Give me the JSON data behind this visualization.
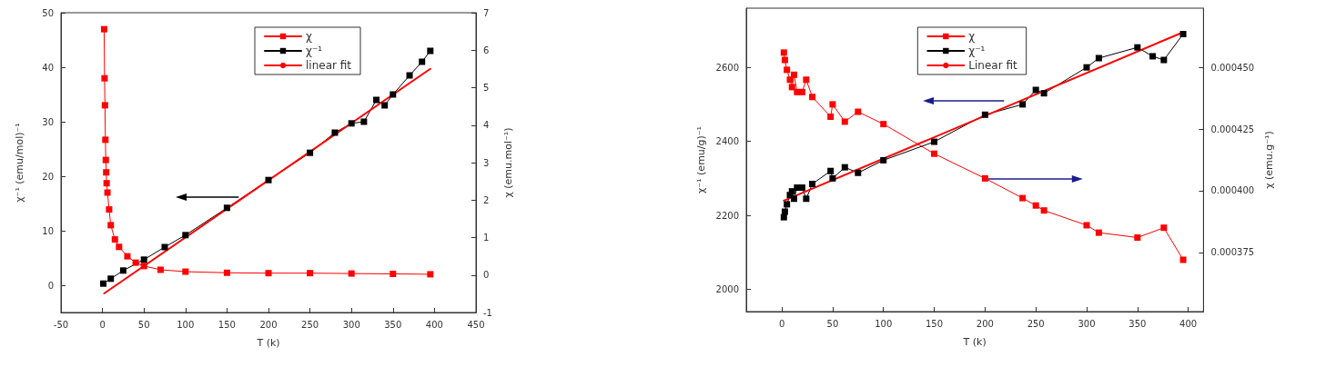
{
  "chart_data": [
    {
      "type": "line",
      "xlabel": "T (k)",
      "ylabel": "χ⁻¹ (emu/mol)⁻¹",
      "y2label": "χ (emu.mol⁻¹)",
      "xlim": [
        -50,
        450
      ],
      "xticks": [
        -50,
        0,
        50,
        100,
        150,
        200,
        250,
        300,
        350,
        400,
        450
      ],
      "ylim": [
        -5,
        50
      ],
      "yticks": [
        0,
        10,
        20,
        30,
        40,
        50
      ],
      "y2lim": [
        -1,
        7
      ],
      "y2ticks": [
        -1,
        0,
        1,
        2,
        3,
        4,
        5,
        6,
        7
      ],
      "grid": false,
      "legend": "top",
      "marker": "square",
      "line_style": "solid",
      "series": [
        {
          "name": "χ",
          "color": "#ff0000",
          "axis": "y2",
          "x": [
            2,
            2.5,
            3,
            3.5,
            4,
            4.5,
            5,
            6,
            8,
            10,
            15,
            20,
            30,
            40,
            50,
            70,
            100,
            150,
            200,
            250,
            300,
            350,
            395
          ],
          "values": [
            6.56,
            5.25,
            4.53,
            3.61,
            3.07,
            2.74,
            2.45,
            2.2,
            1.75,
            1.33,
            0.95,
            0.75,
            0.5,
            0.33,
            0.24,
            0.14,
            0.09,
            0.06,
            0.05,
            0.05,
            0.04,
            0.03,
            0.02
          ]
        },
        {
          "name": "χ⁻¹",
          "color": "#000000",
          "x": [
            1,
            10,
            25,
            50,
            75,
            100,
            150,
            200,
            250,
            280,
            300,
            315,
            330,
            340,
            350,
            370,
            385,
            395
          ],
          "values": [
            0.3,
            1.2,
            2.7,
            4.7,
            7,
            9.2,
            14.2,
            19.3,
            24.3,
            28,
            29.7,
            30,
            34,
            33,
            35,
            38.5,
            41,
            43
          ]
        },
        {
          "name": "linear fit",
          "color": "#ff0000",
          "marker": "none",
          "x": [
            2,
            395
          ],
          "values": [
            -1.5,
            39.7
          ]
        }
      ]
    },
    {
      "type": "line",
      "xlabel": "T (k)",
      "ylabel": "χ⁻¹ (emu/g)⁻¹",
      "y2label": "χ (emu.g⁻¹)",
      "xlim": [
        -35,
        415
      ],
      "xticks": [
        0,
        50,
        100,
        150,
        200,
        250,
        300,
        350,
        400
      ],
      "ylim": [
        1940,
        2760
      ],
      "yticks": [
        2000,
        2200,
        2400,
        2600
      ],
      "y2lim": [
        0.000351,
        0.000474
      ],
      "y2ticks": [
        {
          "value": 0.000375,
          "label": "0.000375"
        },
        {
          "value": 0.0004,
          "label": "0.000400"
        },
        {
          "value": 0.000425,
          "label": "0.000425"
        },
        {
          "value": 0.00045,
          "label": "0.000450"
        }
      ],
      "grid": false,
      "legend": "top",
      "marker": "square",
      "line_style": "solid",
      "series": [
        {
          "name": "χ",
          "color": "#ff0000",
          "axis": "y2",
          "x": [
            2,
            3,
            5,
            8,
            10,
            12,
            15,
            20,
            24,
            30,
            48,
            50,
            62,
            75,
            100,
            150,
            200,
            237,
            250,
            258,
            300,
            312,
            350,
            376,
            395
          ],
          "values": [
            0.000456,
            0.000453,
            0.000449,
            0.000445,
            0.000442,
            0.000447,
            0.00044,
            0.00044,
            0.000445,
            0.000438,
            0.00043,
            0.000435,
            0.000428,
            0.000432,
            0.000427,
            0.000415,
            0.000405,
            0.000397,
            0.000394,
            0.000392,
            0.000386,
            0.000383,
            0.000381,
            0.000385,
            0.000372
          ]
        },
        {
          "name": "χ⁻¹",
          "color": "#000000",
          "x": [
            2,
            3,
            5,
            8,
            10,
            12,
            15,
            20,
            24,
            30,
            48,
            50,
            62,
            75,
            100,
            150,
            200,
            237,
            250,
            258,
            300,
            312,
            350,
            365,
            376,
            395
          ],
          "values": [
            2195,
            2210,
            2230,
            2255,
            2265,
            2245,
            2275,
            2275,
            2245,
            2285,
            2320,
            2300,
            2330,
            2315,
            2349,
            2399,
            2472,
            2500,
            2539,
            2530,
            2600,
            2625,
            2654,
            2630,
            2620,
            2690
          ]
        },
        {
          "name": "Linear fit",
          "color": "#ff0000",
          "marker": "none",
          "x": [
            2,
            395
          ],
          "values": [
            2240,
            2695
          ]
        }
      ]
    }
  ]
}
